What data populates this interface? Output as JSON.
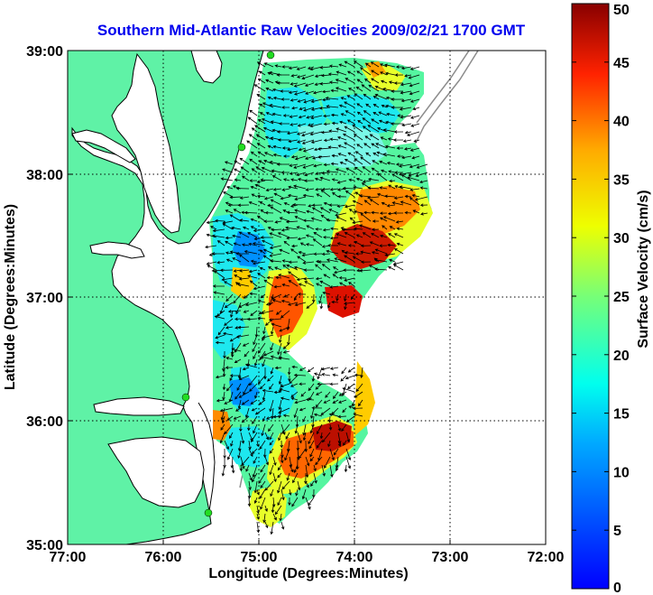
{
  "title": "Southern Mid-Atlantic Raw Velocities 2009/02/21 1700 GMT",
  "x_axis": {
    "label": "Longitude (Degrees:Minutes)",
    "ticks": [
      "77:00",
      "76:00",
      "75:00",
      "74:00",
      "73:00",
      "72:00"
    ]
  },
  "y_axis": {
    "label": "Latitude (Degrees:Minutes)",
    "ticks": [
      "39:00",
      "38:00",
      "37:00",
      "36:00",
      "35:00"
    ]
  },
  "colorbar": {
    "label": "Surface Velocity (cm/s)",
    "ticks": [
      "50",
      "45",
      "40",
      "35",
      "30",
      "25",
      "20",
      "15",
      "10",
      "5",
      "0"
    ],
    "min": 0,
    "max": 50,
    "colormap": "jet"
  },
  "colors": {
    "land": "#5ff2a6",
    "coastline": "#000000",
    "bathymetry_line": "#888888",
    "title": "#0000ee",
    "station_marker": "#22dd22"
  },
  "map": {
    "lon_range": [
      -77,
      -72
    ],
    "lat_range": [
      35,
      39
    ],
    "grid": "dotted"
  }
}
